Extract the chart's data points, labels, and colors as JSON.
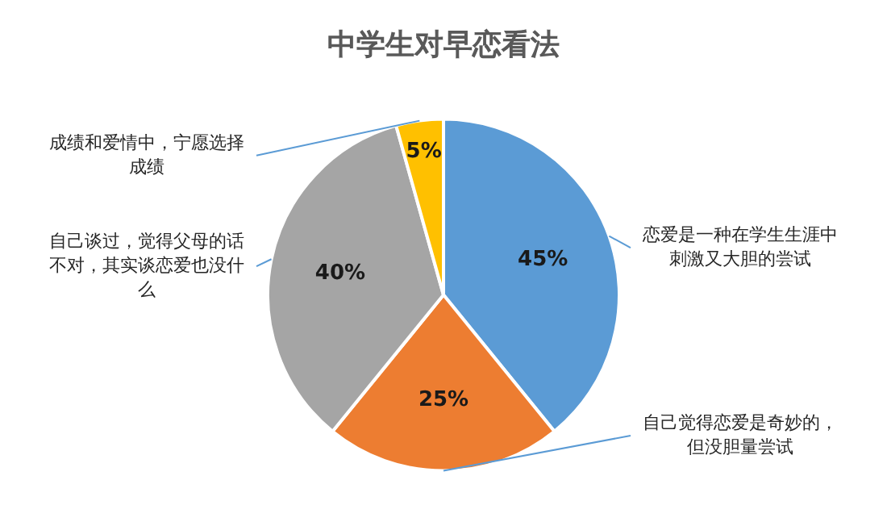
{
  "chart_data": {
    "type": "pie",
    "title": "中学生对早恋看法",
    "categories": [
      "恋爱是一种在学生生涯中刺激又大胆的尝试",
      "自己觉得恋爱是奇妙的，但没胆量尝试",
      "自己谈过，觉得父母的话不对，其实谈恋爱也没什么",
      "成绩和爱情中，宁愿选择成绩"
    ],
    "values": [
      45,
      25,
      40,
      5
    ],
    "colors": [
      "#5b9bd5",
      "#ed7d31",
      "#a5a5a5",
      "#ffc000"
    ],
    "value_labels": [
      "45%",
      "25%",
      "40%",
      "5%"
    ],
    "legend": false
  }
}
